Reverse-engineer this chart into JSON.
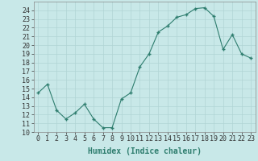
{
  "x": [
    0,
    1,
    2,
    3,
    4,
    5,
    6,
    7,
    8,
    9,
    10,
    11,
    12,
    13,
    14,
    15,
    16,
    17,
    18,
    19,
    20,
    21,
    22,
    23
  ],
  "y": [
    14.5,
    15.5,
    12.5,
    11.5,
    12.2,
    13.2,
    11.5,
    10.5,
    10.5,
    13.8,
    14.5,
    17.5,
    19.0,
    21.5,
    22.2,
    23.2,
    23.5,
    24.2,
    24.3,
    23.3,
    19.5,
    21.2,
    19.0,
    18.5
  ],
  "xlabel": "Humidex (Indice chaleur)",
  "xlim": [
    -0.5,
    23.5
  ],
  "ylim": [
    10,
    25
  ],
  "yticks": [
    10,
    11,
    12,
    13,
    14,
    15,
    16,
    17,
    18,
    19,
    20,
    21,
    22,
    23,
    24
  ],
  "xticks": [
    0,
    1,
    2,
    3,
    4,
    5,
    6,
    7,
    8,
    9,
    10,
    11,
    12,
    13,
    14,
    15,
    16,
    17,
    18,
    19,
    20,
    21,
    22,
    23
  ],
  "line_color": "#2E7D6E",
  "marker_color": "#2E7D6E",
  "bg_color": "#C8E8E8",
  "grid_color": "#B0D4D4",
  "xlabel_fontsize": 7,
  "tick_fontsize": 6
}
